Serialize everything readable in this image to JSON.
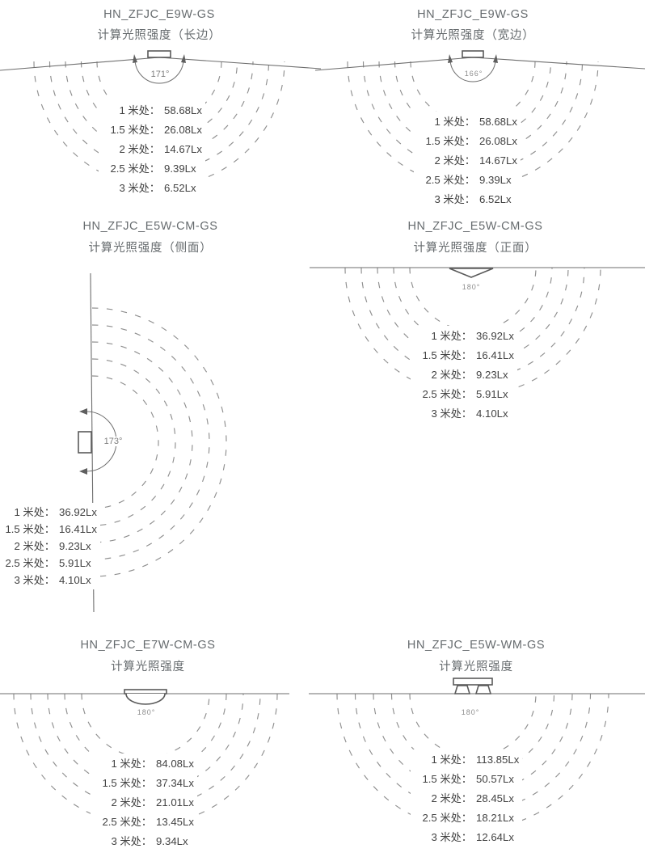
{
  "colors": {
    "line": "#6e6e6e",
    "arc_dash": "#8f8f8f",
    "title_text": "#666b6e",
    "value_text": "#424242"
  },
  "panels": [
    {
      "title": "HN_ZFJC_E9W-GS",
      "subtitle": "计算光照强度（长边）",
      "beam_angle": "171°",
      "rows": [
        {
          "label": "1 米处：",
          "value": "58.68Lx"
        },
        {
          "label": "1.5 米处：",
          "value": "26.08Lx"
        },
        {
          "label": "2 米处：",
          "value": "14.67Lx"
        },
        {
          "label": "2.5 米处：",
          "value": "9.39Lx"
        },
        {
          "label": "3 米处：",
          "value": "6.52Lx"
        }
      ]
    },
    {
      "title": "HN_ZFJC_E9W-GS",
      "subtitle": "计算光照强度（宽边）",
      "beam_angle": "166°",
      "rows": [
        {
          "label": "1 米处：",
          "value": "58.68Lx"
        },
        {
          "label": "1.5 米处：",
          "value": "26.08Lx"
        },
        {
          "label": "2 米处：",
          "value": "14.67Lx"
        },
        {
          "label": "2.5 米处：",
          "value": "9.39Lx"
        },
        {
          "label": "3 米处：",
          "value": "6.52Lx"
        }
      ]
    },
    {
      "title": "HN_ZFJC_E5W-CM-GS",
      "subtitle": "计算光照强度（侧面）",
      "beam_angle": "173°",
      "rows": [
        {
          "label": "1 米处：",
          "value": "36.92Lx"
        },
        {
          "label": "1.5 米处：",
          "value": "16.41Lx"
        },
        {
          "label": "2 米处：",
          "value": "9.23Lx"
        },
        {
          "label": "2.5 米处：",
          "value": "5.91Lx"
        },
        {
          "label": "3 米处：",
          "value": "4.10Lx"
        }
      ]
    },
    {
      "title": "HN_ZFJC_E5W-CM-GS",
      "subtitle": "计算光照强度（正面）",
      "beam_angle": "180°",
      "rows": [
        {
          "label": "1 米处：",
          "value": "36.92Lx"
        },
        {
          "label": "1.5 米处：",
          "value": "16.41Lx"
        },
        {
          "label": "2 米处：",
          "value": "9.23Lx"
        },
        {
          "label": "2.5 米处：",
          "value": "5.91Lx"
        },
        {
          "label": "3 米处：",
          "value": "4.10Lx"
        }
      ]
    },
    {
      "title": "HN_ZFJC_E7W-CM-GS",
      "subtitle": "计算光照强度",
      "beam_angle": "180°",
      "rows": [
        {
          "label": "1 米处：",
          "value": "84.08Lx"
        },
        {
          "label": "1.5 米处：",
          "value": "37.34Lx"
        },
        {
          "label": "2 米处：",
          "value": "21.01Lx"
        },
        {
          "label": "2.5 米处：",
          "value": "13.45Lx"
        },
        {
          "label": "3 米处：",
          "value": "9.34Lx"
        }
      ]
    },
    {
      "title": "HN_ZFJC_E5W-WM-GS",
      "subtitle": "计算光照强度",
      "beam_angle": "180°",
      "rows": [
        {
          "label": "1 米处：",
          "value": "113.85Lx"
        },
        {
          "label": "1.5 米处：",
          "value": "50.57Lx"
        },
        {
          "label": "2 米处：",
          "value": "28.45Lx"
        },
        {
          "label": "2.5 米处：",
          "value": "18.21Lx"
        },
        {
          "label": "3 米处：",
          "value": "12.64Lx"
        }
      ]
    }
  ]
}
